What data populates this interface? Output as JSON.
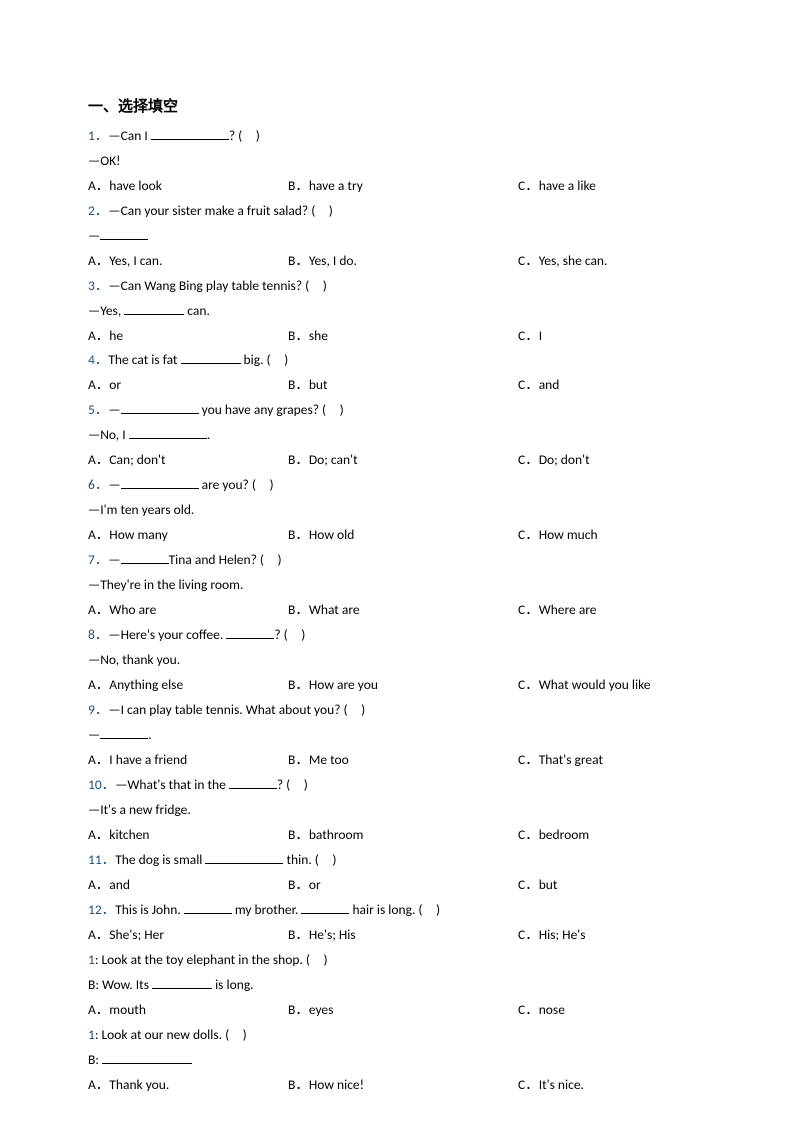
{
  "colors": {
    "qnum_color": "#1f4e79",
    "text_color": "#000000",
    "background": "#ffffff"
  },
  "section_title": "一、选择填空",
  "questions": [
    {
      "num": "1．",
      "stem_pre": "—Can I ",
      "stem_post": "? (　)",
      "extra": "—OK!",
      "a": "A．have look",
      "b": "B．have a try",
      "c": "C．have a like"
    },
    {
      "num": "2．",
      "stem_pre": "—Can your sister make a fruit salad? (　)",
      "extra_pre": "—",
      "a": "A．Yes, I can.",
      "b": "B．Yes, I do.",
      "c": "C．Yes, she can."
    },
    {
      "num": "3．",
      "stem_pre": "—Can Wang Bing play table tennis? (　)",
      "extra_pre": "—Yes, ",
      "extra_post": " can.",
      "a": "A．he",
      "b": "B．she",
      "c": "C．I"
    },
    {
      "num": "4．",
      "stem_pre": "The cat is fat ",
      "stem_post": " big. (　)",
      "a": "A．or",
      "b": "B．but",
      "c": "C．and"
    },
    {
      "num": "5．",
      "stem_pre": "—",
      "stem_post": " you have any grapes? (　)",
      "extra_pre": "—No, I ",
      "extra_post": ".",
      "a": "A．Can; don't",
      "b": "B．Do; can't",
      "c": "C．Do; don't"
    },
    {
      "num": "6．",
      "stem_pre": "—",
      "stem_post": " are you? (　)",
      "extra": "—I'm ten years old.",
      "a": "A．How many",
      "b": "B．How old",
      "c": "C．How much"
    },
    {
      "num": "7．",
      "stem_pre": "—",
      "stem_post": "Tina and Helen? (　)",
      "extra": "—They're in the living room.",
      "a": "A．Who are",
      "b": "B．What are",
      "c": "C．Where are"
    },
    {
      "num": "8．",
      "stem_pre": "—Here's your coffee. ",
      "stem_post": "? (　)",
      "extra": "—No, thank you.",
      "a": "A．Anything else",
      "b": "B．How are you",
      "c": "C．What would you like"
    },
    {
      "num": "9．",
      "stem_pre": "—I can play table tennis. What about you? (　)",
      "extra_pre": "—",
      "extra_post": ".",
      "a": "A．I have a friend",
      "b": "B．Me too",
      "c": "C．That's great"
    },
    {
      "num": "10．",
      "stem_pre": "—What's that in the ",
      "stem_post": "? (　)",
      "extra": "—It's a new fridge.",
      "a": "A．kitchen",
      "b": "B．bathroom",
      "c": "C．bedroom"
    },
    {
      "num": "11．",
      "stem_pre": "The dog is small ",
      "stem_post": " thin. (　)",
      "a": "A．and",
      "b": "B．or",
      "c": "C．but"
    },
    {
      "num": "12．",
      "stem_pre": "This is John. ",
      "stem_mid": " my brother. ",
      "stem_post": " hair is long. (　)",
      "a": "A．She's; Her",
      "b": "B．He's; His",
      "c": "C．His; He's"
    },
    {
      "num_alt": "1",
      "stem_pre": ": Look at the toy elephant in the shop. (　)",
      "extra_pre": "B: Wow. Its ",
      "extra_post": " is long.",
      "a": "A．mouth",
      "b": "B．eyes",
      "c": "C．nose"
    },
    {
      "num_alt": "1",
      "stem_pre": ": Look at our new dolls. (　)",
      "extra_pre": "B: ",
      "a": "A．Thank you.",
      "b": "B．How nice!",
      "c": "C．It's nice."
    }
  ]
}
